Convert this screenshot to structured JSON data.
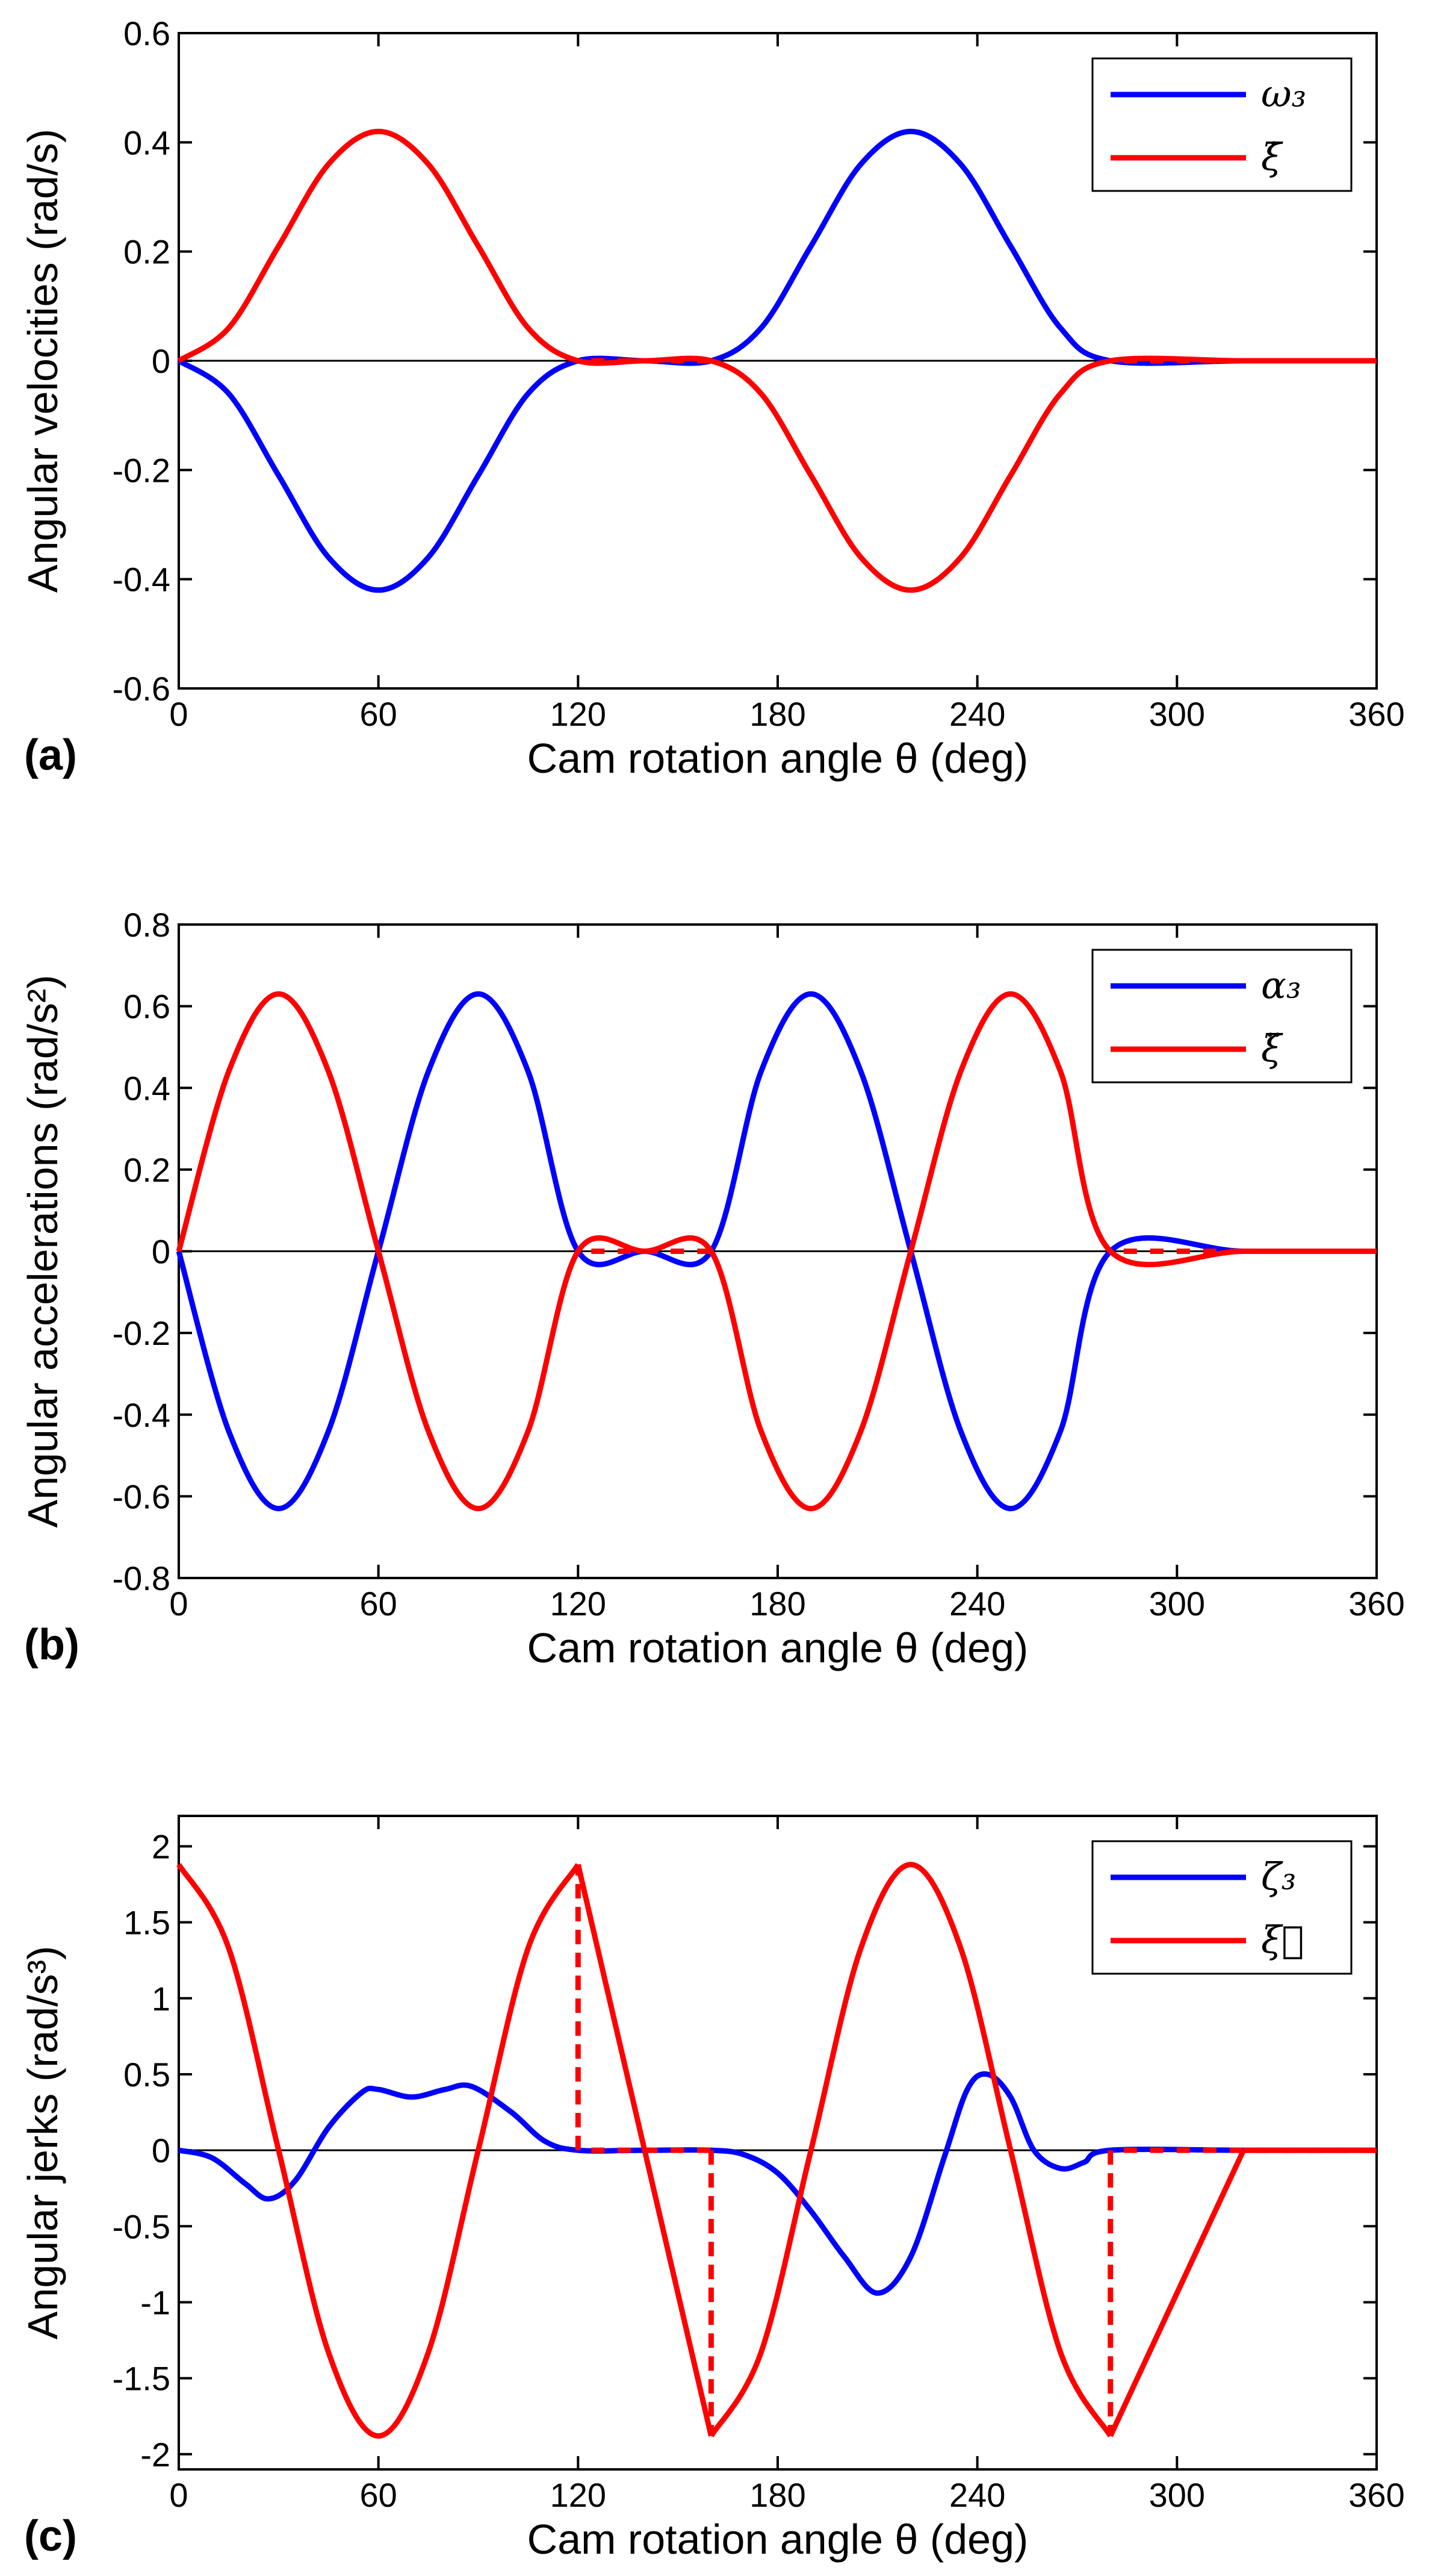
{
  "colors": {
    "series1": "#0000ff",
    "series2": "#ff0000",
    "axis": "#000000"
  },
  "chart_data": [
    {
      "type": "line",
      "panel_label": "(a)",
      "xlabel": "Cam rotation angle θ (deg)",
      "ylabel": "Angular velocities (rad/s)",
      "xlim": [
        0,
        360
      ],
      "ylim": [
        -0.6,
        0.6
      ],
      "xticks": [
        0,
        60,
        120,
        180,
        240,
        300,
        360
      ],
      "yticks": [
        -0.6,
        -0.4,
        -0.2,
        0,
        0.2,
        0.4,
        0.6
      ],
      "ytick_labels": [
        "-0.6",
        "-0.4",
        "-0.2",
        "0",
        "0.2",
        "0.4",
        "0.6"
      ],
      "legend_position": "top-right",
      "series": [
        {
          "name": "ω₃",
          "color": "#0000ff",
          "x": [
            0,
            15,
            30,
            45,
            60,
            75,
            90,
            105,
            120,
            140,
            160,
            175,
            190,
            205,
            220,
            235,
            250,
            265,
            280,
            320,
            360
          ],
          "values": [
            0,
            -0.06,
            -0.21,
            -0.36,
            -0.42,
            -0.36,
            -0.21,
            -0.06,
            0,
            0,
            0,
            0.06,
            0.21,
            0.36,
            0.42,
            0.36,
            0.21,
            0.06,
            0,
            0,
            0
          ]
        },
        {
          "name": "ξ̇",
          "color": "#ff0000",
          "x": [
            0,
            15,
            30,
            45,
            60,
            75,
            90,
            105,
            120,
            140,
            160,
            175,
            190,
            205,
            220,
            235,
            250,
            265,
            280,
            320,
            360
          ],
          "values": [
            0,
            0.06,
            0.21,
            0.36,
            0.42,
            0.36,
            0.21,
            0.06,
            0,
            0,
            0,
            -0.06,
            -0.21,
            -0.36,
            -0.42,
            -0.36,
            -0.21,
            -0.06,
            0,
            0,
            0
          ]
        }
      ]
    },
    {
      "type": "line",
      "panel_label": "(b)",
      "xlabel": "Cam rotation angle θ (deg)",
      "ylabel": "Angular accelerations (rad/s²)",
      "xlim": [
        0,
        360
      ],
      "ylim": [
        -0.8,
        0.8
      ],
      "xticks": [
        0,
        60,
        120,
        180,
        240,
        300,
        360
      ],
      "yticks": [
        -0.8,
        -0.6,
        -0.4,
        -0.2,
        0,
        0.2,
        0.4,
        0.6,
        0.8
      ],
      "ytick_labels": [
        "-0.8",
        "-0.6",
        "-0.4",
        "-0.2",
        "0",
        "0.2",
        "0.4",
        "0.6",
        "0.8"
      ],
      "legend_position": "top-right",
      "series": [
        {
          "name": "α₃",
          "color": "#0000ff",
          "x": [
            0,
            15,
            30,
            45,
            60,
            75,
            90,
            105,
            120,
            140,
            160,
            175,
            190,
            205,
            220,
            235,
            250,
            265,
            280,
            320,
            360
          ],
          "values": [
            0,
            -0.44,
            -0.63,
            -0.44,
            0,
            0.44,
            0.63,
            0.44,
            0,
            0,
            0,
            0.44,
            0.63,
            0.44,
            0,
            -0.44,
            -0.63,
            -0.44,
            0,
            0,
            0
          ]
        },
        {
          "name": "ξ̈",
          "color": "#ff0000",
          "x": [
            0,
            15,
            30,
            45,
            60,
            75,
            90,
            105,
            120,
            140,
            160,
            175,
            190,
            205,
            220,
            235,
            250,
            265,
            280,
            320,
            360
          ],
          "values": [
            0,
            0.44,
            0.63,
            0.44,
            0,
            -0.44,
            -0.63,
            -0.44,
            0,
            0,
            0,
            -0.44,
            -0.63,
            -0.44,
            0,
            0.44,
            0.63,
            0.44,
            0,
            0,
            0
          ]
        }
      ]
    },
    {
      "type": "line",
      "panel_label": "(c)",
      "xlabel": "Cam rotation angle θ (deg)",
      "ylabel": "Angular jerks (rad/s³)",
      "xlim": [
        0,
        360
      ],
      "ylim": [
        -2.1,
        2.2
      ],
      "xticks": [
        0,
        60,
        120,
        180,
        240,
        300,
        360
      ],
      "yticks": [
        -2,
        -1.5,
        -1,
        -0.5,
        0,
        0.5,
        1,
        1.5,
        2
      ],
      "ytick_labels": [
        "-2",
        "-1.5",
        "-1",
        "-0.5",
        "0",
        "0.5",
        "1",
        "1.5",
        "2"
      ],
      "legend_position": "top-right",
      "series": [
        {
          "name": "ζ₃",
          "color": "#0000ff",
          "x": [
            0,
            10,
            20,
            27,
            35,
            45,
            55,
            60,
            70,
            80,
            88,
            100,
            110,
            120,
            140,
            160,
            170,
            180,
            190,
            200,
            210,
            220,
            230,
            237,
            243,
            250,
            257,
            265,
            272,
            280,
            320,
            360
          ],
          "values": [
            0,
            -0.05,
            -0.22,
            -0.32,
            -0.2,
            0.15,
            0.38,
            0.4,
            0.35,
            0.4,
            0.42,
            0.25,
            0.06,
            0,
            0,
            0,
            -0.03,
            -0.15,
            -0.4,
            -0.7,
            -0.94,
            -0.7,
            -0.05,
            0.4,
            0.5,
            0.35,
            0.0,
            -0.12,
            -0.08,
            0,
            0,
            0
          ]
        },
        {
          "name": "ξ⃛",
          "color": "#ff0000",
          "x": [
            0,
            15,
            30,
            45,
            60,
            75,
            90,
            105,
            120,
            140,
            160,
            175,
            190,
            205,
            220,
            235,
            250,
            265,
            280,
            320,
            360
          ],
          "values": [
            1.88,
            1.33,
            0,
            -1.33,
            -1.88,
            -1.33,
            0,
            1.33,
            1.88,
            0,
            -1.88,
            -1.33,
            0,
            1.33,
            1.88,
            1.33,
            0,
            -1.33,
            -1.88,
            0,
            0
          ],
          "segments": [
            [
              0,
              8
            ],
            [
              8,
              9
            ],
            [
              9,
              10
            ],
            [
              10,
              18
            ],
            [
              18,
              19
            ],
            [
              19,
              20
            ]
          ],
          "dashed_jumps": [
            120,
            160,
            280
          ]
        }
      ]
    }
  ]
}
